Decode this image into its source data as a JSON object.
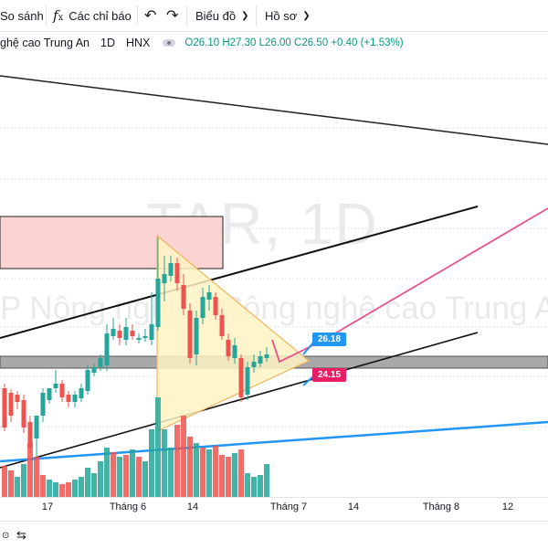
{
  "toolbar": {
    "compare_label": "So sánh",
    "indicators_label": "Các chỉ báo",
    "chart_label": "Biểu đồ",
    "profile_label": "Hồ sơ"
  },
  "legend": {
    "name": "ghệ cao Trung An",
    "interval": "1D",
    "exchange": "HNX",
    "o_key": "O",
    "o_val": "26.10",
    "h_key": "H",
    "h_val": "27.30",
    "l_key": "L",
    "l_val": "26.00",
    "c_key": "C",
    "c_val": "26.50",
    "change": "+0.40 (+1.53%)"
  },
  "watermark": {
    "symbol": "TAR, 1D",
    "company": "P Nông nghiệp Công nghệ cao Trung An"
  },
  "price_tags": {
    "upper": "26.18",
    "lower": "24.15"
  },
  "x_axis": {
    "labels": [
      "17",
      "Tháng 6",
      "14",
      "Tháng 7",
      "14",
      "Tháng 8",
      "12"
    ]
  },
  "colors": {
    "up": "#26a69a",
    "down": "#ef5350",
    "upper_tag": "#2196f3",
    "lower_tag": "#e91e63",
    "trendline_blue": "#2196f3",
    "trendline_pink": "#f06292",
    "triangle_fill": "#fff3c4"
  },
  "icons": {
    "indicators": "fx-icon",
    "undo": "undo-icon",
    "chevron": "chevron-down-icon",
    "eye": "eye-icon",
    "replay": "replay-icon"
  }
}
